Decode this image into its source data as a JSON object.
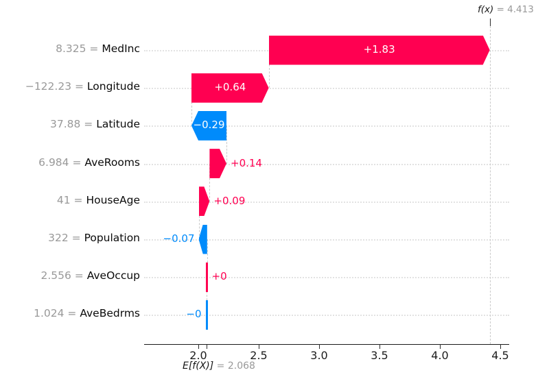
{
  "chart_data": {
    "type": "bar",
    "subtype": "shap-waterfall",
    "fx_label_math": "f(x)",
    "fx_value_text": " = 4.413",
    "fx_value": 4.413,
    "base_label_math": "E[f(X)]",
    "base_value_text": " = 2.068",
    "base_value": 2.068,
    "equals_separator": " = ",
    "xlim": [
      1.55,
      4.6
    ],
    "x_ticks": [
      {
        "value": 2.0,
        "label": "2.0"
      },
      {
        "value": 2.5,
        "label": "2.5"
      },
      {
        "value": 3.0,
        "label": "3.0"
      },
      {
        "value": 3.5,
        "label": "3.5"
      },
      {
        "value": 4.0,
        "label": "4.0"
      },
      {
        "value": 4.5,
        "label": "4.5"
      }
    ],
    "colors": {
      "positive": "#ff0051",
      "negative": "#008bfb",
      "muted_text": "#999999",
      "grid": "#e2e2e2",
      "connector": "#c9c9c9"
    },
    "rows": [
      {
        "feature": "MedInc",
        "data_value": "8.325",
        "contribution": 1.83,
        "contribution_label": "+1.83",
        "from": 2.583,
        "to": 4.413,
        "direction": "positive",
        "label_placement": "inside"
      },
      {
        "feature": "Longitude",
        "data_value": "−122.23",
        "contribution": 0.64,
        "contribution_label": "+0.64",
        "from": 1.943,
        "to": 2.583,
        "direction": "positive",
        "label_placement": "inside"
      },
      {
        "feature": "Latitude",
        "data_value": "37.88",
        "contribution": -0.29,
        "contribution_label": "−0.29",
        "from": 1.943,
        "to": 2.233,
        "direction": "negative",
        "label_placement": "inside"
      },
      {
        "feature": "AveRooms",
        "data_value": "6.984",
        "contribution": 0.14,
        "contribution_label": "+0.14",
        "from": 2.093,
        "to": 2.233,
        "direction": "positive",
        "label_placement": "right"
      },
      {
        "feature": "HouseAge",
        "data_value": "41",
        "contribution": 0.09,
        "contribution_label": "+0.09",
        "from": 2.003,
        "to": 2.093,
        "direction": "positive",
        "label_placement": "right"
      },
      {
        "feature": "Population",
        "data_value": "322",
        "contribution": -0.07,
        "contribution_label": "−0.07",
        "from": 2.003,
        "to": 2.073,
        "direction": "negative",
        "label_placement": "left"
      },
      {
        "feature": "AveOccup",
        "data_value": "2.556",
        "contribution": 0,
        "contribution_label": "+0",
        "from": 2.069,
        "to": 2.073,
        "direction": "positive",
        "label_placement": "right"
      },
      {
        "feature": "AveBedrms",
        "data_value": "1.024",
        "contribution": 0,
        "contribution_label": "−0",
        "from": 2.067,
        "to": 2.069,
        "direction": "negative",
        "label_placement": "left"
      }
    ],
    "connector_values": [
      2.583,
      1.943,
      2.233,
      2.093,
      2.003,
      2.073,
      2.068
    ]
  }
}
